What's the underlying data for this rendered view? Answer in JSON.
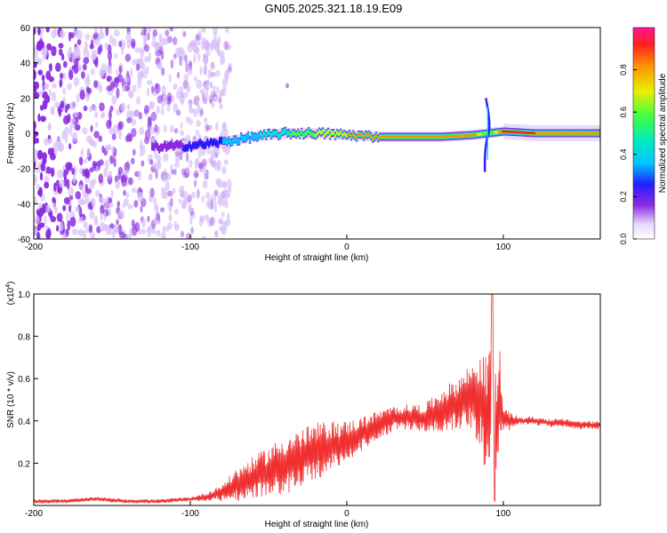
{
  "title": "GN05.2025.321.18.19.E09",
  "colors": {
    "accent": "#f03030",
    "axis": "#000000"
  },
  "chart_data": [
    {
      "type": "heatmap",
      "name": "spectrogram",
      "xlabel": "Height of straight line (km)",
      "ylabel": "Frequency (Hz)",
      "xlim": [
        -200,
        162
      ],
      "ylim": [
        -60,
        60
      ],
      "xticks": [
        -200,
        -100,
        0,
        100
      ],
      "xtick_labels": [
        "-200",
        "-100",
        "0",
        "100"
      ],
      "yticks": [
        60,
        40,
        20,
        0,
        -20,
        -40,
        -60
      ],
      "ytick_labels": [
        "60",
        "40",
        "20",
        "0",
        "-20",
        "-40",
        "-60"
      ],
      "colorbar": {
        "label": "Normalized spectral amplitude",
        "range": [
          0,
          1
        ],
        "ticks": [
          0.0,
          0.2,
          0.4,
          0.6,
          0.8
        ],
        "tick_labels": [
          "0.0",
          "0.2",
          "0.4",
          "0.6",
          "0.8"
        ]
      },
      "noise_region_x": [
        -200,
        -80
      ],
      "signal_band": {
        "x": [
          -125,
          -100,
          -80,
          -60,
          -40,
          -20,
          0,
          20,
          40,
          60,
          80,
          90,
          100,
          120,
          162
        ],
        "center_hz": [
          -8,
          -7,
          -5,
          -2,
          0,
          0,
          -1,
          -2,
          -2,
          -2,
          -1,
          0,
          1,
          0,
          0
        ],
        "amplitude": [
          0.2,
          0.3,
          0.4,
          0.5,
          0.6,
          0.75,
          0.85,
          0.9,
          0.9,
          0.9,
          0.95,
          0.6,
          1.0,
          0.95,
          0.85
        ]
      }
    },
    {
      "type": "line",
      "name": "snr",
      "xlabel": "Height of straight line (km)",
      "ylabel": "SNR (10 * v/v)",
      "scale_label": "(x10",
      "scale_exp": "4",
      "scale_close": ")",
      "xlim": [
        -200,
        162
      ],
      "ylim": [
        0,
        1.0
      ],
      "xticks": [
        -200,
        -100,
        0,
        100
      ],
      "xtick_labels": [
        "-200",
        "-100",
        "0",
        "100"
      ],
      "yticks": [
        0.2,
        0.4,
        0.6,
        0.8,
        1.0
      ],
      "ytick_labels": [
        "0.2",
        "0.4",
        "0.6",
        "0.8",
        "1.0"
      ],
      "series": [
        {
          "name": "SNR",
          "color": "#f03030",
          "x": [
            -200,
            -180,
            -160,
            -140,
            -120,
            -100,
            -90,
            -80,
            -70,
            -60,
            -50,
            -40,
            -30,
            -20,
            -10,
            0,
            10,
            20,
            30,
            40,
            50,
            60,
            70,
            80,
            85,
            90,
            93,
            95,
            98,
            100,
            110,
            120,
            130,
            140,
            150,
            162
          ],
          "y": [
            0.02,
            0.02,
            0.03,
            0.02,
            0.02,
            0.03,
            0.04,
            0.06,
            0.1,
            0.13,
            0.16,
            0.19,
            0.22,
            0.25,
            0.28,
            0.3,
            0.34,
            0.38,
            0.41,
            0.42,
            0.41,
            0.45,
            0.48,
            0.52,
            0.5,
            0.4,
            0.6,
            0.35,
            0.5,
            0.4,
            0.4,
            0.4,
            0.39,
            0.39,
            0.38,
            0.38
          ],
          "envelope": [
            0.01,
            0.01,
            0.01,
            0.01,
            0.01,
            0.01,
            0.02,
            0.04,
            0.08,
            0.1,
            0.12,
            0.14,
            0.14,
            0.14,
            0.12,
            0.1,
            0.08,
            0.07,
            0.06,
            0.06,
            0.07,
            0.1,
            0.12,
            0.16,
            0.22,
            0.3,
            0.4,
            0.3,
            0.25,
            0.06,
            0.02,
            0.02,
            0.02,
            0.02,
            0.02,
            0.02
          ]
        }
      ]
    }
  ]
}
